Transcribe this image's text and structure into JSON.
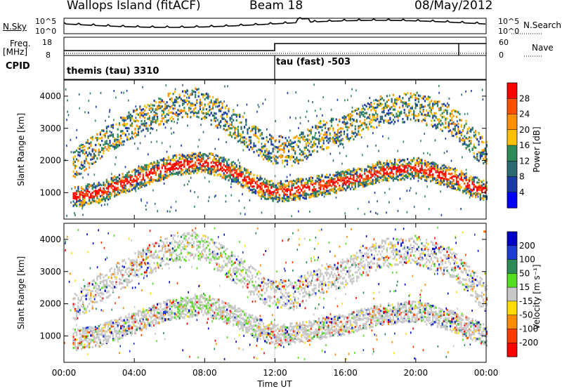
{
  "header": {
    "station": "Wallops Island (fitACF)",
    "beam": "Beam 18",
    "date": "08/May/2012"
  },
  "noise_panel": {
    "left_label": "N.Sky",
    "left_ticks": [
      "10^5",
      "10^0"
    ],
    "right_label": "N.Search",
    "right_ticks": [
      "10^5",
      "10^0"
    ]
  },
  "freq_panel": {
    "left_label_line1": "Freq.",
    "left_label_line2": "[MHz]",
    "left_ticks": [
      "18",
      "8"
    ],
    "right_label": "Nave",
    "right_ticks": [
      "60",
      "0"
    ]
  },
  "cpid_panel": {
    "label": "CPID",
    "segments": [
      {
        "name": "themis (tau) 3310",
        "start_hour": 0,
        "end_hour": 12
      },
      {
        "name": "tau (fast) -503",
        "start_hour": 12,
        "end_hour": 24
      }
    ]
  },
  "colorbars": {
    "power": {
      "label": "Power [dB]",
      "ticks": [
        "28",
        "24",
        "20",
        "16",
        "12",
        "8",
        "4"
      ],
      "colors": [
        "#ff0000",
        "#ff5000",
        "#ff9000",
        "#ffc000",
        "#2e8b57",
        "#2a6a70",
        "#1a3aa8",
        "#0000ff"
      ]
    },
    "velocity": {
      "label": "Velocity [m s⁻¹]",
      "ticks": [
        "200",
        "100",
        "50",
        "15",
        "-15",
        "-50",
        "-100",
        "-200"
      ],
      "colors": [
        "#0000c8",
        "#1e3cd2",
        "#2e8b57",
        "#55dd22",
        "#c8c8c8",
        "#ffdd00",
        "#ff8c00",
        "#ff3c00",
        "#ff0000"
      ]
    }
  },
  "x_axis": {
    "label": "Time UT",
    "ticks": [
      "00:00",
      "04:00",
      "08:00",
      "12:00",
      "16:00",
      "20:00",
      "00:00"
    ]
  },
  "chart_data": {
    "type": "heatmap",
    "xlabel": "Time UT",
    "ylabel": "Slant Range [km]",
    "xlim_hours": [
      0,
      24
    ],
    "ylim_km": [
      180,
      4500
    ],
    "y_ticks": [
      1000,
      2000,
      3000,
      4000
    ],
    "panels": [
      {
        "name": "Power",
        "units": "dB",
        "range": [
          0,
          30
        ]
      },
      {
        "name": "Velocity",
        "units": "m s-1",
        "range": [
          -200,
          200
        ]
      }
    ],
    "echo_bands": [
      {
        "name": "lower band",
        "points": [
          [
            0.5,
            900
          ],
          [
            2,
            1050
          ],
          [
            4,
            1450
          ],
          [
            6,
            1850
          ],
          [
            8,
            2000
          ],
          [
            9.5,
            1700
          ],
          [
            11,
            1250
          ],
          [
            12,
            1050
          ],
          [
            13.5,
            1150
          ],
          [
            16,
            1400
          ],
          [
            18,
            1700
          ],
          [
            20,
            1800
          ],
          [
            22,
            1500
          ],
          [
            24,
            1050
          ]
        ]
      },
      {
        "name": "upper band",
        "points": [
          [
            0.5,
            1900
          ],
          [
            2,
            2500
          ],
          [
            4,
            3200
          ],
          [
            6,
            3700
          ],
          [
            7.5,
            3850
          ],
          [
            9,
            3400
          ],
          [
            10.5,
            2800
          ],
          [
            11.5,
            2400
          ],
          [
            13,
            2300
          ],
          [
            14.5,
            2800
          ],
          [
            16,
            3000
          ],
          [
            18,
            3600
          ],
          [
            20,
            3700
          ],
          [
            22,
            3300
          ],
          [
            24,
            2200
          ]
        ]
      }
    ]
  }
}
